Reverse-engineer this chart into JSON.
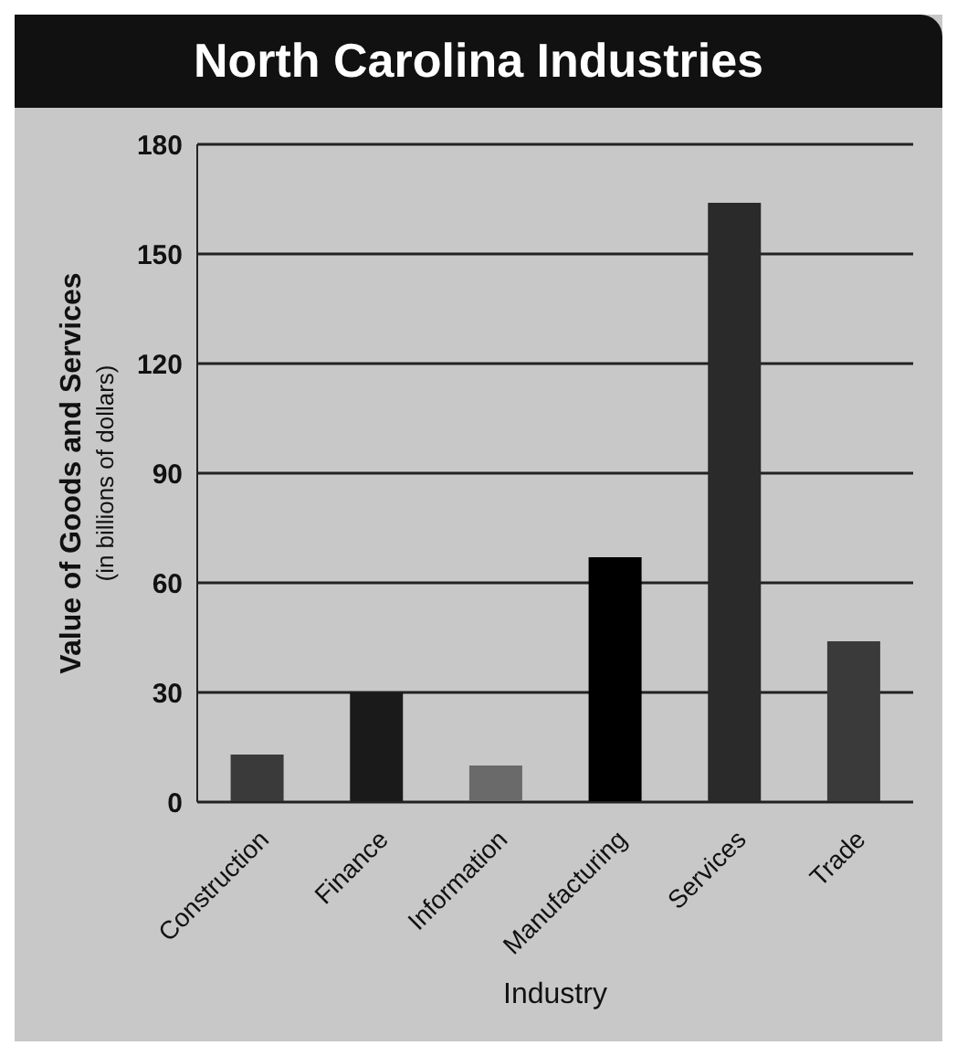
{
  "chart_data": {
    "type": "bar",
    "title": "North Carolina Industries",
    "xlabel": "Industry",
    "ylabel": "Value of Goods and Services\n(in billions of dollars)",
    "categories": [
      "Construction",
      "Finance",
      "Information",
      "Manufacturing",
      "Services",
      "Trade"
    ],
    "values": [
      13,
      30,
      10,
      67,
      164,
      44
    ],
    "colors": [
      "#3a3a3a",
      "#1a1a1a",
      "#6a6a6a",
      "#000000",
      "#2a2a2a",
      "#3a3a3a"
    ],
    "ylim": [
      0,
      180
    ],
    "yticks": [
      0,
      30,
      60,
      90,
      120,
      150,
      180
    ],
    "grid": "y"
  }
}
